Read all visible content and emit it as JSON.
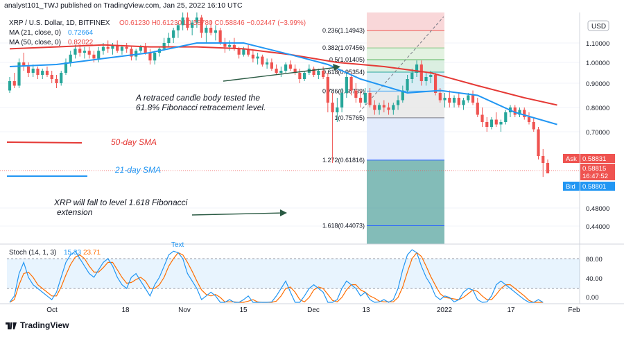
{
  "header": {
    "publisher": "analyst101_TWJ published on TradingView.com, Jan 25, 2022 16:10 UTC"
  },
  "legend": {
    "symbol": "XRP / U.S. Dollar, 1D, BITFINEX",
    "ohlc": "O0.61230  H0.61230  L0.58780  C0.58846  −0.02447 (−3.99%)",
    "ma21": "MA (21, close, 0)",
    "ma21_value": "0.72664",
    "ma50": "MA (50, close, 0)",
    "ma50_value": "0.82022"
  },
  "currency_badge": "USD",
  "price_labels": {
    "ask_label": "Ask",
    "ask": "0.58831",
    "last": "0.58815",
    "timer": "16:47:52",
    "bid_label": "Bid",
    "bid": "0.58801"
  },
  "annotations": {
    "retrace_text_1": "A retraced candle body tested the",
    "retrace_text_2": "61.8% Fibonacci retracement level.",
    "sma50_label": "50-day SMA",
    "sma21_label": "21-day SMA",
    "fall_text_1": "XRP will fall to level 1.618 Fibonacci",
    "fall_text_2": "extension",
    "partial_text": "Text"
  },
  "stoch": {
    "label": "Stoch (14, 1, 3)",
    "k_value": "15.33",
    "d_value": "23.71",
    "ticks": [
      "80.00",
      "40.00",
      "0.00"
    ]
  },
  "brand": "TradingView",
  "colors": {
    "up": "#26a69a",
    "down": "#ef5350",
    "ma21": "#2196f3",
    "ma50": "#e53935",
    "fib": "#787b86",
    "stoch_k": "#2196f3",
    "stoch_d": "#ff6d00"
  },
  "chart_data": {
    "type": "candlestick",
    "y_axis": {
      "min": 0.41,
      "max": 1.22,
      "ticks": [
        "1.10000",
        "1.00000",
        "0.90000",
        "0.80000",
        "0.70000",
        "0.48000",
        "0.44000"
      ],
      "tick_values": [
        1.1,
        1.0,
        0.9,
        0.8,
        0.7,
        0.48,
        0.44
      ]
    },
    "x_axis": {
      "labels": [
        "Oct",
        "18",
        "Nov",
        "15",
        "Dec",
        "13",
        "2022",
        "17",
        "Feb"
      ]
    },
    "fibonacci": {
      "levels": [
        {
          "label": "0.236(1.14943)",
          "value": 1.14943
        },
        {
          "label": "0.382(1.07456)",
          "value": 1.07456
        },
        {
          "label": "0.5(1.01405)",
          "value": 1.01405
        },
        {
          "label": "0.618(0.95354)",
          "value": 0.95354
        },
        {
          "label": "0.786(0.86739)",
          "value": 0.86739
        },
        {
          "label": "1(0.75765)",
          "value": 0.75765
        },
        {
          "label": "1.272(0.61816)",
          "value": 0.61816
        },
        {
          "label": "1.618(0.44073)",
          "value": 0.44073
        }
      ]
    },
    "candles": [
      [
        0.87,
        0.93,
        0.86,
        0.91
      ],
      [
        0.91,
        0.95,
        0.88,
        0.89
      ],
      [
        0.89,
        1.02,
        0.88,
        1.0
      ],
      [
        1.0,
        1.05,
        0.96,
        0.98
      ],
      [
        0.98,
        1.0,
        0.93,
        0.95
      ],
      [
        0.95,
        0.99,
        0.93,
        0.97
      ],
      [
        0.97,
        0.98,
        0.92,
        0.94
      ],
      [
        0.94,
        0.97,
        0.92,
        0.96
      ],
      [
        0.96,
        0.98,
        0.93,
        0.94
      ],
      [
        0.94,
        0.96,
        0.9,
        0.92
      ],
      [
        0.92,
        0.94,
        0.88,
        0.9
      ],
      [
        0.9,
        0.96,
        0.89,
        0.95
      ],
      [
        0.95,
        1.02,
        0.94,
        1.0
      ],
      [
        1.0,
        1.06,
        0.98,
        1.04
      ],
      [
        1.04,
        1.09,
        1.02,
        1.07
      ],
      [
        1.07,
        1.09,
        1.03,
        1.05
      ],
      [
        1.05,
        1.08,
        1.02,
        1.06
      ],
      [
        1.06,
        1.08,
        1.02,
        1.04
      ],
      [
        1.04,
        1.06,
        1.0,
        1.02
      ],
      [
        1.02,
        1.08,
        1.0,
        1.06
      ],
      [
        1.06,
        1.1,
        1.04,
        1.08
      ],
      [
        1.08,
        1.11,
        1.05,
        1.07
      ],
      [
        1.07,
        1.1,
        1.04,
        1.09
      ],
      [
        1.09,
        1.11,
        1.05,
        1.06
      ],
      [
        1.06,
        1.09,
        1.04,
        1.08
      ],
      [
        1.08,
        1.1,
        1.05,
        1.07
      ],
      [
        1.07,
        1.08,
        1.01,
        1.03
      ],
      [
        1.03,
        1.07,
        1.01,
        1.06
      ],
      [
        1.06,
        1.09,
        1.05,
        1.08
      ],
      [
        1.08,
        1.1,
        1.04,
        1.05
      ],
      [
        1.05,
        1.07,
        0.99,
        1.01
      ],
      [
        1.01,
        1.06,
        0.99,
        1.05
      ],
      [
        1.05,
        1.08,
        1.03,
        1.07
      ],
      [
        1.07,
        1.12,
        1.06,
        1.1
      ],
      [
        1.1,
        1.14,
        1.08,
        1.12
      ],
      [
        1.12,
        1.16,
        1.1,
        1.15
      ],
      [
        1.15,
        1.18,
        1.12,
        1.17
      ],
      [
        1.17,
        1.22,
        1.15,
        1.2
      ],
      [
        1.2,
        1.22,
        1.15,
        1.16
      ],
      [
        1.16,
        1.19,
        1.13,
        1.18
      ],
      [
        1.18,
        1.22,
        1.16,
        1.2
      ],
      [
        1.2,
        1.21,
        1.12,
        1.14
      ],
      [
        1.14,
        1.17,
        1.1,
        1.16
      ],
      [
        1.16,
        1.19,
        1.13,
        1.14
      ],
      [
        1.14,
        1.17,
        1.11,
        1.15
      ],
      [
        1.15,
        1.16,
        1.09,
        1.1
      ],
      [
        1.1,
        1.12,
        1.05,
        1.08
      ],
      [
        1.08,
        1.11,
        1.06,
        1.09
      ],
      [
        1.09,
        1.12,
        1.06,
        1.07
      ],
      [
        1.07,
        1.08,
        1.02,
        1.04
      ],
      [
        1.04,
        1.08,
        1.03,
        1.07
      ],
      [
        1.07,
        1.09,
        1.03,
        1.04
      ],
      [
        1.04,
        1.06,
        1.0,
        1.02
      ],
      [
        1.02,
        1.05,
        0.99,
        1.03
      ],
      [
        1.03,
        1.04,
        0.98,
        0.99
      ],
      [
        0.99,
        1.02,
        0.97,
        1.0
      ],
      [
        1.0,
        1.02,
        0.96,
        0.97
      ],
      [
        0.97,
        0.99,
        0.94,
        0.95
      ],
      [
        0.95,
        0.98,
        0.93,
        0.96
      ],
      [
        0.96,
        1.0,
        0.95,
        0.99
      ],
      [
        0.99,
        1.01,
        0.96,
        0.97
      ],
      [
        0.97,
        0.99,
        0.94,
        0.95
      ],
      [
        0.95,
        0.97,
        0.9,
        0.92
      ],
      [
        0.92,
        0.96,
        0.91,
        0.95
      ],
      [
        0.95,
        0.99,
        0.94,
        0.97
      ],
      [
        0.97,
        0.98,
        0.93,
        0.94
      ],
      [
        0.94,
        0.97,
        0.92,
        0.96
      ],
      [
        0.96,
        0.98,
        0.92,
        0.93
      ],
      [
        0.93,
        0.95,
        0.78,
        0.82
      ],
      [
        0.82,
        0.86,
        0.61,
        0.78
      ],
      [
        0.78,
        0.84,
        0.74,
        0.8
      ],
      [
        0.8,
        0.88,
        0.78,
        0.86
      ],
      [
        0.86,
        0.95,
        0.84,
        0.93
      ],
      [
        0.93,
        0.95,
        0.85,
        0.87
      ],
      [
        0.87,
        0.9,
        0.82,
        0.84
      ],
      [
        0.84,
        0.87,
        0.8,
        0.82
      ],
      [
        0.82,
        0.88,
        0.81,
        0.86
      ],
      [
        0.86,
        0.88,
        0.8,
        0.81
      ],
      [
        0.81,
        0.83,
        0.77,
        0.79
      ],
      [
        0.79,
        0.82,
        0.77,
        0.81
      ],
      [
        0.81,
        0.83,
        0.78,
        0.8
      ],
      [
        0.8,
        0.82,
        0.77,
        0.79
      ],
      [
        0.79,
        0.82,
        0.77,
        0.81
      ],
      [
        0.81,
        0.85,
        0.79,
        0.83
      ],
      [
        0.83,
        0.89,
        0.82,
        0.87
      ],
      [
        0.87,
        0.94,
        0.86,
        0.92
      ],
      [
        0.92,
        0.97,
        0.9,
        0.95
      ],
      [
        0.95,
        1.01,
        0.93,
        0.99
      ],
      [
        0.99,
        1.01,
        0.89,
        0.91
      ],
      [
        0.91,
        0.95,
        0.89,
        0.93
      ],
      [
        0.93,
        0.96,
        0.9,
        0.94
      ],
      [
        0.94,
        0.95,
        0.85,
        0.86
      ],
      [
        0.86,
        0.88,
        0.82,
        0.83
      ],
      [
        0.83,
        0.86,
        0.8,
        0.84
      ],
      [
        0.84,
        0.87,
        0.8,
        0.82
      ],
      [
        0.82,
        0.85,
        0.8,
        0.84
      ],
      [
        0.84,
        0.86,
        0.8,
        0.81
      ],
      [
        0.81,
        0.84,
        0.79,
        0.83
      ],
      [
        0.83,
        0.86,
        0.82,
        0.85
      ],
      [
        0.85,
        0.87,
        0.81,
        0.82
      ],
      [
        0.82,
        0.84,
        0.76,
        0.77
      ],
      [
        0.77,
        0.8,
        0.72,
        0.74
      ],
      [
        0.74,
        0.76,
        0.7,
        0.72
      ],
      [
        0.72,
        0.76,
        0.71,
        0.75
      ],
      [
        0.75,
        0.78,
        0.72,
        0.73
      ],
      [
        0.73,
        0.75,
        0.7,
        0.74
      ],
      [
        0.74,
        0.79,
        0.73,
        0.78
      ],
      [
        0.78,
        0.81,
        0.76,
        0.8
      ],
      [
        0.8,
        0.81,
        0.76,
        0.77
      ],
      [
        0.77,
        0.8,
        0.76,
        0.79
      ],
      [
        0.79,
        0.8,
        0.75,
        0.76
      ],
      [
        0.76,
        0.78,
        0.73,
        0.74
      ],
      [
        0.74,
        0.76,
        0.7,
        0.71
      ],
      [
        0.71,
        0.72,
        0.62,
        0.63
      ],
      [
        0.63,
        0.65,
        0.57,
        0.61
      ],
      [
        0.61,
        0.62,
        0.58,
        0.58
      ]
    ],
    "ma21_points": [
      [
        0,
        0.98
      ],
      [
        10,
        0.99
      ],
      [
        20,
        1.02
      ],
      [
        30,
        1.05
      ],
      [
        40,
        1.1
      ],
      [
        50,
        1.1
      ],
      [
        60,
        1.04
      ],
      [
        68,
        0.99
      ],
      [
        75,
        0.92
      ],
      [
        85,
        0.86
      ],
      [
        92,
        0.87
      ],
      [
        100,
        0.85
      ],
      [
        108,
        0.78
      ],
      [
        117,
        0.73
      ]
    ],
    "ma50_points": [
      [
        0,
        1.07
      ],
      [
        10,
        1.08
      ],
      [
        20,
        1.09
      ],
      [
        30,
        1.08
      ],
      [
        40,
        1.08
      ],
      [
        50,
        1.07
      ],
      [
        60,
        1.04
      ],
      [
        70,
        1.0
      ],
      [
        80,
        0.98
      ],
      [
        90,
        0.95
      ],
      [
        100,
        0.89
      ],
      [
        110,
        0.84
      ],
      [
        117,
        0.81
      ]
    ],
    "stoch_k": [
      15,
      30,
      60,
      75,
      55,
      45,
      40,
      35,
      30,
      25,
      35,
      55,
      75,
      85,
      90,
      80,
      70,
      60,
      55,
      65,
      75,
      80,
      70,
      55,
      45,
      40,
      55,
      60,
      50,
      40,
      30,
      45,
      55,
      70,
      85,
      90,
      88,
      80,
      60,
      50,
      40,
      25,
      30,
      35,
      30,
      20,
      15,
      25,
      20,
      15,
      25,
      30,
      20,
      18,
      20,
      15,
      22,
      30,
      40,
      50,
      35,
      20,
      15,
      30,
      40,
      45,
      40,
      35,
      20,
      15,
      25,
      40,
      50,
      45,
      40,
      30,
      35,
      25,
      20,
      22,
      25,
      20,
      25,
      40,
      65,
      85,
      92,
      88,
      70,
      55,
      45,
      30,
      25,
      30,
      28,
      22,
      25,
      35,
      40,
      38,
      25,
      20,
      22,
      30,
      45,
      50,
      45,
      40,
      35,
      30,
      25,
      15,
      20,
      25,
      15
    ],
    "stoch_d": [
      20,
      25,
      45,
      60,
      62,
      55,
      45,
      40,
      35,
      30,
      30,
      42,
      58,
      72,
      82,
      85,
      80,
      70,
      62,
      62,
      68,
      75,
      75,
      65,
      55,
      47,
      48,
      52,
      55,
      50,
      40,
      40,
      45,
      55,
      70,
      80,
      88,
      85,
      75,
      63,
      50,
      38,
      32,
      30,
      32,
      28,
      22,
      22,
      22,
      20,
      20,
      23,
      25,
      22,
      20,
      18,
      20,
      23,
      30,
      40,
      42,
      35,
      25,
      22,
      28,
      38,
      42,
      40,
      32,
      24,
      22,
      28,
      38,
      45,
      45,
      38,
      35,
      30,
      27,
      23,
      22,
      22,
      22,
      28,
      42,
      62,
      80,
      88,
      83,
      70,
      56,
      44,
      33,
      28,
      27,
      26,
      25,
      28,
      33,
      38,
      36,
      30,
      25,
      25,
      32,
      40,
      45,
      45,
      40,
      35,
      30,
      24,
      20,
      20,
      18
    ]
  }
}
